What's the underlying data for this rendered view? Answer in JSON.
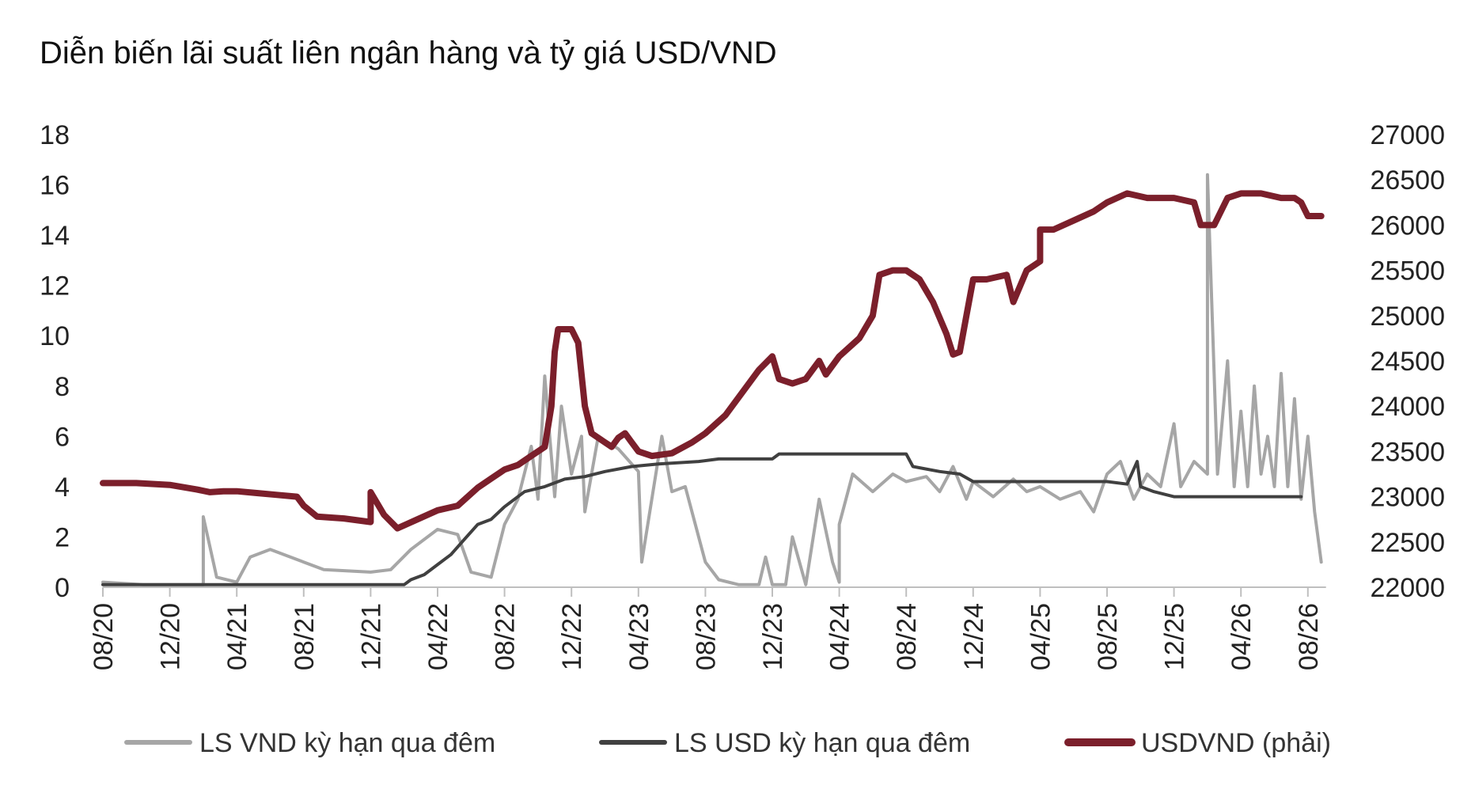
{
  "chart_data": {
    "type": "line",
    "title": "Diễn biến lãi suất liên ngân hàng và tỷ giá USD/VND",
    "x_labels": [
      "08/20",
      "12/20",
      "04/21",
      "08/21",
      "12/21",
      "04/22",
      "08/22",
      "12/22",
      "04/23",
      "08/23",
      "12/23",
      "04/24",
      "08/24",
      "12/24",
      "04/25",
      "08/25",
      "12/25",
      "04/26",
      "08/26"
    ],
    "y_left": {
      "ticks": [
        0,
        2,
        4,
        6,
        8,
        10,
        12,
        14,
        16,
        18
      ],
      "range": [
        0,
        18
      ]
    },
    "y_right": {
      "ticks": [
        22000,
        22500,
        23000,
        23500,
        24000,
        24500,
        25000,
        25500,
        26000,
        26500,
        27000
      ],
      "range": [
        22000,
        27000
      ]
    },
    "grid": false,
    "legend_position": "bottom",
    "series": [
      {
        "name": "LS VND kỳ hạn qua đêm",
        "axis": "left",
        "color": "#a6a6a6",
        "points": [
          [
            0,
            0.2
          ],
          [
            0.6,
            0.1
          ],
          [
            1.5,
            0.1
          ],
          [
            1.5,
            2.8
          ],
          [
            1.7,
            0.4
          ],
          [
            2,
            0.2
          ],
          [
            2.2,
            1.2
          ],
          [
            2.5,
            1.5
          ],
          [
            3,
            1.0
          ],
          [
            3.3,
            0.7
          ],
          [
            4,
            0.6
          ],
          [
            4.3,
            0.7
          ],
          [
            4.6,
            1.5
          ],
          [
            5,
            2.3
          ],
          [
            5.3,
            2.1
          ],
          [
            5.5,
            0.6
          ],
          [
            5.8,
            0.4
          ],
          [
            6,
            2.5
          ],
          [
            6.2,
            3.5
          ],
          [
            6.4,
            5.6
          ],
          [
            6.5,
            3.5
          ],
          [
            6.6,
            8.4
          ],
          [
            6.75,
            3.6
          ],
          [
            6.85,
            7.2
          ],
          [
            7,
            4.5
          ],
          [
            7.15,
            6.0
          ],
          [
            7.2,
            3.0
          ],
          [
            7.4,
            6.0
          ],
          [
            7.7,
            5.5
          ],
          [
            8,
            4.6
          ],
          [
            8.05,
            1.0
          ],
          [
            8.2,
            3.5
          ],
          [
            8.35,
            6.0
          ],
          [
            8.5,
            3.8
          ],
          [
            8.7,
            4.0
          ],
          [
            8.9,
            2.0
          ],
          [
            9,
            1.0
          ],
          [
            9.2,
            0.3
          ],
          [
            9.5,
            0.1
          ],
          [
            9.8,
            0.1
          ],
          [
            9.9,
            1.2
          ],
          [
            10,
            0.1
          ],
          [
            10.2,
            0.1
          ],
          [
            10.3,
            2.0
          ],
          [
            10.5,
            0.1
          ],
          [
            10.7,
            3.5
          ],
          [
            10.9,
            1.0
          ],
          [
            11,
            0.2
          ],
          [
            11,
            2.5
          ],
          [
            11.2,
            4.5
          ],
          [
            11.5,
            3.8
          ],
          [
            11.8,
            4.5
          ],
          [
            12,
            4.2
          ],
          [
            12.3,
            4.4
          ],
          [
            12.5,
            3.8
          ],
          [
            12.7,
            4.8
          ],
          [
            12.9,
            3.5
          ],
          [
            13,
            4.2
          ],
          [
            13.3,
            3.6
          ],
          [
            13.6,
            4.3
          ],
          [
            13.8,
            3.8
          ],
          [
            14,
            4.0
          ],
          [
            14.3,
            3.5
          ],
          [
            14.6,
            3.8
          ],
          [
            14.8,
            3.0
          ],
          [
            15,
            4.5
          ],
          [
            15.2,
            5.0
          ],
          [
            15.4,
            3.5
          ],
          [
            15.6,
            4.5
          ],
          [
            15.8,
            4.0
          ],
          [
            16,
            6.5
          ],
          [
            16.1,
            4.0
          ],
          [
            16.3,
            5.0
          ],
          [
            16.5,
            4.5
          ],
          [
            16.5,
            16.4
          ],
          [
            16.65,
            4.5
          ],
          [
            16.8,
            9.0
          ],
          [
            16.9,
            4.0
          ],
          [
            17,
            7.0
          ],
          [
            17.1,
            4.0
          ],
          [
            17.2,
            8.0
          ],
          [
            17.3,
            4.5
          ],
          [
            17.4,
            6.0
          ],
          [
            17.5,
            4.0
          ],
          [
            17.6,
            8.5
          ],
          [
            17.7,
            4.0
          ],
          [
            17.8,
            7.5
          ],
          [
            17.9,
            3.5
          ],
          [
            18,
            6.0
          ],
          [
            18.1,
            3.0
          ],
          [
            18.2,
            1.0
          ]
        ]
      },
      {
        "name": "LS USD kỳ hạn qua đêm",
        "axis": "left",
        "color": "#404040",
        "points": [
          [
            0,
            0.1
          ],
          [
            4.5,
            0.1
          ],
          [
            4.6,
            0.3
          ],
          [
            4.8,
            0.5
          ],
          [
            5,
            0.9
          ],
          [
            5.2,
            1.3
          ],
          [
            5.4,
            1.9
          ],
          [
            5.6,
            2.5
          ],
          [
            5.8,
            2.7
          ],
          [
            6,
            3.2
          ],
          [
            6.3,
            3.8
          ],
          [
            6.6,
            4.0
          ],
          [
            6.9,
            4.3
          ],
          [
            7.2,
            4.4
          ],
          [
            7.5,
            4.6
          ],
          [
            7.9,
            4.8
          ],
          [
            8.3,
            4.9
          ],
          [
            8.9,
            5.0
          ],
          [
            9.2,
            5.1
          ],
          [
            10,
            5.1
          ],
          [
            10.1,
            5.3
          ],
          [
            12,
            5.3
          ],
          [
            12.1,
            4.8
          ],
          [
            12.5,
            4.6
          ],
          [
            12.8,
            4.5
          ],
          [
            13,
            4.2
          ],
          [
            14,
            4.2
          ],
          [
            15,
            4.2
          ],
          [
            15.3,
            4.1
          ],
          [
            15.45,
            5.0
          ],
          [
            15.5,
            4.0
          ],
          [
            15.7,
            3.8
          ],
          [
            16,
            3.6
          ],
          [
            17,
            3.6
          ],
          [
            17.5,
            3.6
          ],
          [
            17.9,
            3.6
          ]
        ]
      },
      {
        "name": "USDVND (phải)",
        "axis": "right",
        "color": "#7b1f2b",
        "points": [
          [
            0,
            23150
          ],
          [
            0.5,
            23150
          ],
          [
            1,
            23130
          ],
          [
            1.4,
            23080
          ],
          [
            1.6,
            23050
          ],
          [
            1.8,
            23060
          ],
          [
            2,
            23060
          ],
          [
            2.3,
            23040
          ],
          [
            2.6,
            23020
          ],
          [
            2.9,
            23000
          ],
          [
            3,
            22900
          ],
          [
            3.2,
            22780
          ],
          [
            3.6,
            22760
          ],
          [
            4,
            22720
          ],
          [
            4,
            23050
          ],
          [
            4.2,
            22800
          ],
          [
            4.4,
            22650
          ],
          [
            4.7,
            22750
          ],
          [
            5,
            22850
          ],
          [
            5.3,
            22900
          ],
          [
            5.6,
            23100
          ],
          [
            5.8,
            23200
          ],
          [
            6,
            23300
          ],
          [
            6.2,
            23350
          ],
          [
            6.4,
            23450
          ],
          [
            6.6,
            23550
          ],
          [
            6.7,
            24000
          ],
          [
            6.75,
            24600
          ],
          [
            6.8,
            24850
          ],
          [
            7.0,
            24850
          ],
          [
            7.1,
            24700
          ],
          [
            7.2,
            24000
          ],
          [
            7.3,
            23700
          ],
          [
            7.5,
            23600
          ],
          [
            7.6,
            23550
          ],
          [
            7.7,
            23650
          ],
          [
            7.8,
            23700
          ],
          [
            7.9,
            23600
          ],
          [
            8,
            23500
          ],
          [
            8.2,
            23450
          ],
          [
            8.5,
            23480
          ],
          [
            8.8,
            23600
          ],
          [
            9,
            23700
          ],
          [
            9.3,
            23900
          ],
          [
            9.6,
            24200
          ],
          [
            9.8,
            24400
          ],
          [
            10,
            24550
          ],
          [
            10.1,
            24300
          ],
          [
            10.3,
            24250
          ],
          [
            10.5,
            24300
          ],
          [
            10.7,
            24500
          ],
          [
            10.8,
            24350
          ],
          [
            11,
            24550
          ],
          [
            11.3,
            24750
          ],
          [
            11.5,
            25000
          ],
          [
            11.6,
            25450
          ],
          [
            11.8,
            25500
          ],
          [
            12,
            25500
          ],
          [
            12.2,
            25400
          ],
          [
            12.4,
            25150
          ],
          [
            12.6,
            24800
          ],
          [
            12.7,
            24570
          ],
          [
            12.8,
            24600
          ],
          [
            12.9,
            25000
          ],
          [
            13,
            25400
          ],
          [
            13.2,
            25400
          ],
          [
            13.5,
            25450
          ],
          [
            13.6,
            25150
          ],
          [
            13.8,
            25500
          ],
          [
            14,
            25600
          ],
          [
            14,
            25950
          ],
          [
            14.2,
            25950
          ],
          [
            14.5,
            26050
          ],
          [
            14.8,
            26150
          ],
          [
            15,
            26250
          ],
          [
            15.3,
            26350
          ],
          [
            15.6,
            26300
          ],
          [
            16,
            26300
          ],
          [
            16.3,
            26250
          ],
          [
            16.4,
            26000
          ],
          [
            16.6,
            26000
          ],
          [
            16.8,
            26300
          ],
          [
            17,
            26350
          ],
          [
            17.3,
            26350
          ],
          [
            17.6,
            26300
          ],
          [
            17.8,
            26300
          ],
          [
            17.9,
            26250
          ],
          [
            18,
            26100
          ],
          [
            18.2,
            26100
          ]
        ]
      }
    ]
  }
}
